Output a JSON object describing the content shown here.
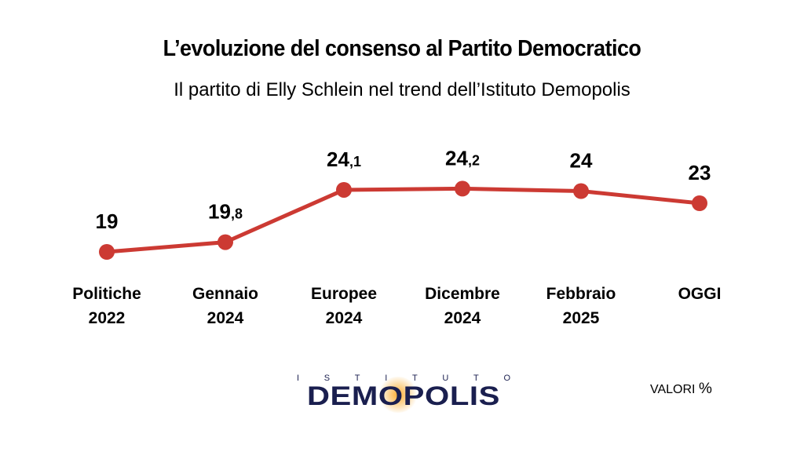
{
  "title": "L’evoluzione del consenso al Partito Democratico",
  "subtitle": "Il partito di Elly Schlein nel trend dell’Istituto Demopolis",
  "colors": {
    "line": "#cc3a33",
    "text": "#000000",
    "logo": "#1a1f4f",
    "logo_glow": "#f5a623"
  },
  "chart_data": {
    "type": "line",
    "categories": [
      [
        "Politiche",
        "2022"
      ],
      [
        "Gennaio",
        "2024"
      ],
      [
        "Europee",
        "2024"
      ],
      [
        "Dicembre",
        "2024"
      ],
      [
        "Febbraio",
        "2025"
      ],
      [
        "OGGI"
      ]
    ],
    "values": [
      19,
      19.8,
      24.1,
      24.2,
      24,
      23
    ],
    "labels": [
      {
        "int": "19",
        "dec": ""
      },
      {
        "int": "19",
        "dec": ",8"
      },
      {
        "int": "24",
        "dec": ",1"
      },
      {
        "int": "24",
        "dec": ",2"
      },
      {
        "int": "24",
        "dec": ""
      },
      {
        "int": "23",
        "dec": ""
      }
    ],
    "grid": false,
    "legend": "none"
  },
  "logo": {
    "top_text": [
      "I",
      "S",
      "T",
      "I",
      "T",
      "U",
      "T",
      "O"
    ],
    "main_text": "DEMOPOLIS"
  },
  "units": {
    "label": "VALORI",
    "symbol": "%"
  }
}
